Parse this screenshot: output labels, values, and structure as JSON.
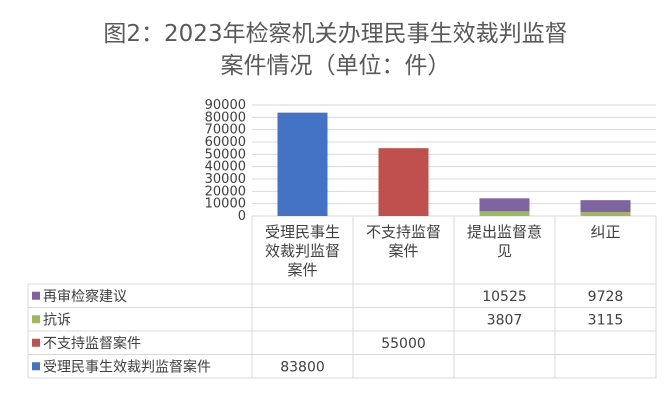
{
  "title_line1": "图2：2023年检察机关办理民事生效裁判监督",
  "title_line2": "案件情况（单位：件）",
  "chart_data": {
    "type": "bar",
    "stacked": true,
    "title": "图2：2023年检察机关办理民事生效裁判监督案件情况（单位：件）",
    "categories": [
      "受理民事生效裁判监督案件",
      "不支持监督案件",
      "提出监督意见",
      "纠正"
    ],
    "category_labels_wrapped": [
      [
        "受理民事生",
        "效裁判监督",
        "案件"
      ],
      [
        "不支持监督",
        "案件"
      ],
      [
        "提出监督意",
        "见"
      ],
      [
        "纠正"
      ]
    ],
    "ylim": [
      0,
      90000
    ],
    "yticks": [
      0,
      10000,
      20000,
      30000,
      40000,
      50000,
      60000,
      70000,
      80000,
      90000
    ],
    "grid": true,
    "legend_position": "data-table",
    "series": [
      {
        "name": "受理民事生效裁判监督案件",
        "color": "#4472C4",
        "values": [
          83800,
          null,
          null,
          null
        ]
      },
      {
        "name": "不支持监督案件",
        "color": "#C0504D",
        "values": [
          null,
          55000,
          null,
          null
        ]
      },
      {
        "name": "抗诉",
        "color": "#9BBB59",
        "values": [
          null,
          null,
          3807,
          3115
        ]
      },
      {
        "name": "再审检察建议",
        "color": "#8064A2",
        "values": [
          null,
          null,
          10525,
          9728
        ]
      }
    ],
    "table_rows": [
      {
        "name": "再审检察建议",
        "color": "#8064A2",
        "cells": [
          "",
          "",
          "10525",
          "9728"
        ]
      },
      {
        "name": "抗诉",
        "color": "#9BBB59",
        "cells": [
          "",
          "",
          "3807",
          "3115"
        ]
      },
      {
        "name": "不支持监督案件",
        "color": "#C0504D",
        "cells": [
          "",
          "55000",
          "",
          ""
        ]
      },
      {
        "name": "受理民事生效裁判监督案件",
        "color": "#4472C4",
        "cells": [
          "83800",
          "",
          "",
          ""
        ]
      }
    ]
  }
}
